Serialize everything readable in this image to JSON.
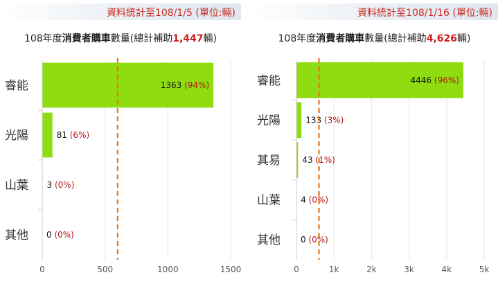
{
  "chart_data": [
    {
      "type": "bar",
      "orientation": "horizontal",
      "header": "資料統計至108/1/5 (單位:輛)",
      "title_prefix": "108年度",
      "title_bold": "消費者購車",
      "title_mid": "數量(總計補助",
      "title_total": "1,447",
      "title_suffix": "輛)",
      "categories": [
        "睿能",
        "光陽",
        "山葉",
        "其他"
      ],
      "values": [
        1363,
        81,
        3,
        0
      ],
      "percent_labels": [
        "(94%)",
        "(6%)",
        "(0%)",
        "(0%)"
      ],
      "xlim": [
        0,
        1500
      ],
      "ticks": [
        0,
        500,
        1000,
        1500
      ],
      "tick_labels": [
        "0",
        "500",
        "1000",
        "1500"
      ],
      "reference_line": 600,
      "grid": "vertical",
      "colors": {
        "bar": "#8fdc10",
        "reference": "#e8771a",
        "percent": "#b5161b",
        "header": "#cc2a21"
      }
    },
    {
      "type": "bar",
      "orientation": "horizontal",
      "header": "資料統計至108/1/16 (單位:輛)",
      "title_prefix": "108年度",
      "title_bold": "消費者購車",
      "title_mid": "數量(總計補助",
      "title_total": "4,626",
      "title_suffix": "輛)",
      "categories": [
        "睿能",
        "光陽",
        "其易",
        "山葉",
        "其他"
      ],
      "values": [
        4446,
        133,
        43,
        4,
        0
      ],
      "percent_labels": [
        "(96%)",
        "(3%)",
        "(1%)",
        "(0%)",
        "(0%)"
      ],
      "xlim": [
        0,
        5000
      ],
      "ticks": [
        0,
        1000,
        2000,
        3000,
        4000,
        5000
      ],
      "tick_labels": [
        "0",
        "1k",
        "2k",
        "3k",
        "4k",
        "5k"
      ],
      "reference_line": 600,
      "grid": "vertical",
      "colors": {
        "bar": "#8fdc10",
        "reference": "#e8771a",
        "percent": "#b5161b",
        "header": "#cc2a21"
      }
    }
  ]
}
